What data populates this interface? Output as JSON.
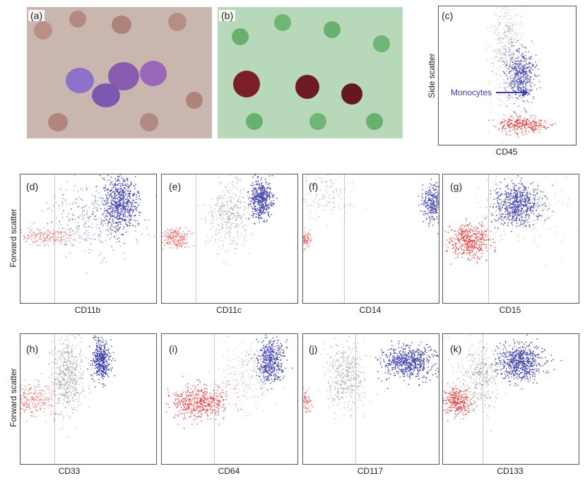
{
  "panels": {
    "a": {
      "label": "(a)"
    },
    "b": {
      "label": "(b)"
    },
    "c": {
      "label": "(c)",
      "xlabel": "CD45",
      "ylabel": "Side scatter",
      "annotation": "Monocytes"
    },
    "d": {
      "label": "(d)",
      "xlabel": "CD11b"
    },
    "e": {
      "label": "(e)",
      "xlabel": "CD11c"
    },
    "f": {
      "label": "(f)",
      "xlabel": "CD14"
    },
    "g": {
      "label": "(g)",
      "xlabel": "CD15"
    },
    "h": {
      "label": "(h)",
      "xlabel": "CD33"
    },
    "i": {
      "label": "(i)",
      "xlabel": "CD64"
    },
    "j": {
      "label": "(j)",
      "xlabel": "CD117"
    },
    "k": {
      "label": "(k)",
      "xlabel": "CD133"
    }
  },
  "row_ylabels": {
    "row1": "Forward scatter",
    "row2": "Forward scatter"
  },
  "colors": {
    "monocytes": "#3a3aa8",
    "gray": "#8a8a8a",
    "red": "#e03030",
    "annotation": "#3a3aa8"
  }
}
